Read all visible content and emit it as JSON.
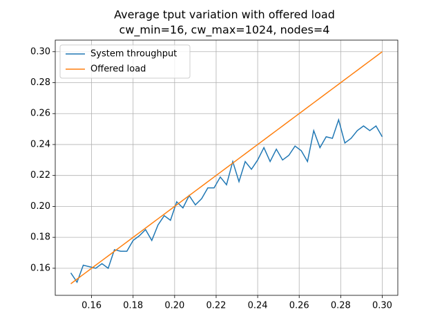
{
  "chart_data": {
    "type": "line",
    "title": "Average tput variation with offered load",
    "subtitle": "cw_min=16, cw_max=1024, nodes=4",
    "x": [
      0.15,
      0.153,
      0.156,
      0.159,
      0.162,
      0.165,
      0.168,
      0.171,
      0.174,
      0.177,
      0.18,
      0.183,
      0.186,
      0.189,
      0.192,
      0.195,
      0.198,
      0.201,
      0.204,
      0.207,
      0.21,
      0.213,
      0.216,
      0.219,
      0.222,
      0.225,
      0.228,
      0.231,
      0.234,
      0.237,
      0.24,
      0.243,
      0.246,
      0.249,
      0.252,
      0.255,
      0.258,
      0.261,
      0.264,
      0.267,
      0.27,
      0.273,
      0.276,
      0.279,
      0.282,
      0.285,
      0.288,
      0.291,
      0.294,
      0.297,
      0.3
    ],
    "series": [
      {
        "name": "System throughput",
        "color": "#1f77b4",
        "values": [
          0.157,
          0.151,
          0.162,
          0.161,
          0.16,
          0.163,
          0.16,
          0.172,
          0.171,
          0.171,
          0.178,
          0.181,
          0.185,
          0.178,
          0.188,
          0.194,
          0.191,
          0.203,
          0.199,
          0.207,
          0.201,
          0.205,
          0.212,
          0.212,
          0.219,
          0.214,
          0.229,
          0.216,
          0.229,
          0.224,
          0.23,
          0.238,
          0.229,
          0.237,
          0.23,
          0.233,
          0.239,
          0.236,
          0.229,
          0.249,
          0.238,
          0.245,
          0.244,
          0.256,
          0.241,
          0.244,
          0.249,
          0.252,
          0.249,
          0.252,
          0.245
        ]
      },
      {
        "name": "Offered load",
        "color": "#ff7f0e",
        "values": [
          0.15,
          0.153,
          0.156,
          0.159,
          0.162,
          0.165,
          0.168,
          0.171,
          0.174,
          0.177,
          0.18,
          0.183,
          0.186,
          0.189,
          0.192,
          0.195,
          0.198,
          0.201,
          0.204,
          0.207,
          0.21,
          0.213,
          0.216,
          0.219,
          0.222,
          0.225,
          0.228,
          0.231,
          0.234,
          0.237,
          0.24,
          0.243,
          0.246,
          0.249,
          0.252,
          0.255,
          0.258,
          0.261,
          0.264,
          0.267,
          0.27,
          0.273,
          0.276,
          0.279,
          0.282,
          0.285,
          0.288,
          0.291,
          0.294,
          0.297,
          0.3
        ]
      }
    ],
    "xlim": [
      0.1425,
      0.3075
    ],
    "ylim": [
      0.1425,
      0.3075
    ],
    "xticks": [
      {
        "value": 0.16,
        "label": "0.16"
      },
      {
        "value": 0.18,
        "label": "0.18"
      },
      {
        "value": 0.2,
        "label": "0.20"
      },
      {
        "value": 0.22,
        "label": "0.22"
      },
      {
        "value": 0.24,
        "label": "0.24"
      },
      {
        "value": 0.26,
        "label": "0.26"
      },
      {
        "value": 0.28,
        "label": "0.28"
      },
      {
        "value": 0.3,
        "label": "0.30"
      }
    ],
    "yticks": [
      {
        "value": 0.16,
        "label": "0.16"
      },
      {
        "value": 0.18,
        "label": "0.18"
      },
      {
        "value": 0.2,
        "label": "0.20"
      },
      {
        "value": 0.22,
        "label": "0.22"
      },
      {
        "value": 0.24,
        "label": "0.24"
      },
      {
        "value": 0.26,
        "label": "0.26"
      },
      {
        "value": 0.28,
        "label": "0.28"
      },
      {
        "value": 0.3,
        "label": "0.30"
      }
    ],
    "grid": true,
    "legend": "upper left"
  }
}
